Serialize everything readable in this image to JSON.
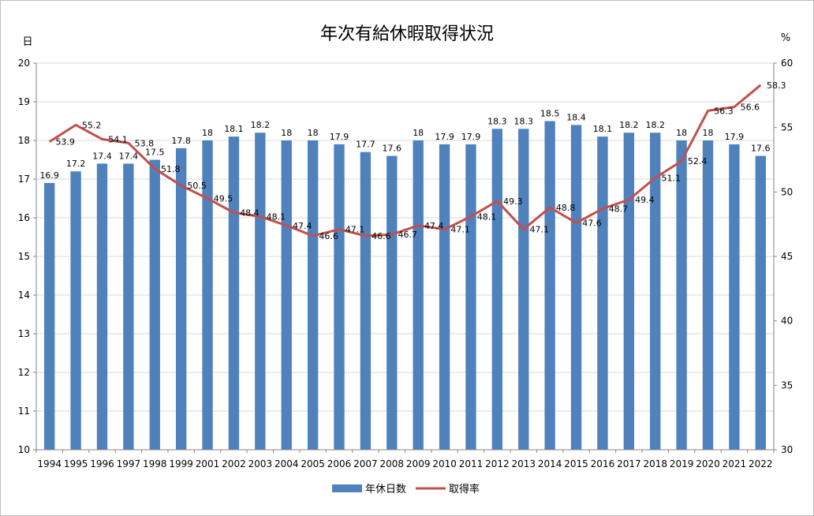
{
  "chart_data": {
    "type": "bar",
    "title": "年次有給休暇取得状況",
    "y_left_unit": "日",
    "y_right_unit": "%",
    "ylim": [
      10,
      20
    ],
    "ylim_right": [
      30,
      60
    ],
    "y_ticks": [
      10,
      11,
      12,
      13,
      14,
      15,
      16,
      17,
      18,
      19,
      20
    ],
    "y_right_ticks": [
      30,
      35,
      40,
      45,
      50,
      55,
      60
    ],
    "grid": true,
    "legend_position": "bottom",
    "categories": [
      "1994",
      "1995",
      "1996",
      "1997",
      "1998",
      "1999",
      "2001",
      "2002",
      "2003",
      "2004",
      "2005",
      "2006",
      "2007",
      "2008",
      "2009",
      "2010",
      "2011",
      "2012",
      "2013",
      "2014",
      "2015",
      "2016",
      "2017",
      "2018",
      "2019",
      "2020",
      "2021",
      "2022"
    ],
    "series": [
      {
        "name": "年休日数",
        "type": "bar",
        "axis": "left",
        "color": "#4f81bd",
        "values": [
          16.9,
          17.2,
          17.4,
          17.4,
          17.5,
          17.8,
          18,
          18.1,
          18.2,
          18,
          18,
          17.9,
          17.7,
          17.6,
          18,
          17.9,
          17.9,
          18.3,
          18.3,
          18.5,
          18.4,
          18.1,
          18.2,
          18.2,
          18,
          18,
          17.9,
          17.6
        ]
      },
      {
        "name": "取得率",
        "type": "line",
        "axis": "right",
        "color": "#c0504d",
        "values": [
          53.9,
          55.2,
          54.1,
          53.8,
          51.8,
          50.5,
          49.5,
          48.4,
          48.1,
          47.4,
          46.6,
          47.1,
          46.6,
          46.7,
          47.4,
          47.1,
          48.1,
          49.3,
          47.1,
          48.8,
          47.6,
          48.7,
          49.4,
          51.1,
          52.4,
          56.3,
          56.6,
          58.3
        ]
      }
    ]
  }
}
